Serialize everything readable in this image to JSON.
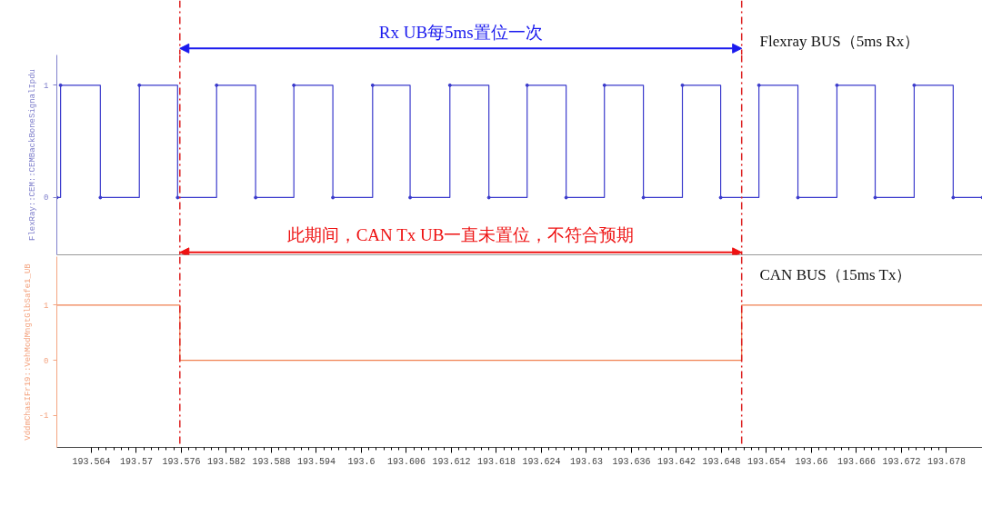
{
  "chart_data": [
    {
      "type": "step",
      "ylabel": "FlexRay::CEM::CEMBackBoneSignalIpdu",
      "xlim": [
        193.5594,
        193.6828
      ],
      "ylim": [
        -0.51,
        1.27
      ],
      "yticks": [
        0,
        1
      ],
      "tick_labels": "y",
      "grid": false,
      "legend": false,
      "marker": "circle",
      "series": [
        {
          "name": "Flexray BUS（5ms Rx）",
          "color": "#3a3acc",
          "x": [
            193.5594,
            193.5599,
            193.5652,
            193.5704,
            193.5755,
            193.5807,
            193.5859,
            193.591,
            193.5962,
            193.6015,
            193.6065,
            193.6118,
            193.617,
            193.6221,
            193.6273,
            193.6324,
            193.6376,
            193.6428,
            193.6479,
            193.653,
            193.6582,
            193.6634,
            193.6685,
            193.6737,
            193.6789,
            193.6828
          ],
          "values": [
            0,
            1,
            0,
            1,
            0,
            1,
            0,
            1,
            0,
            1,
            0,
            1,
            0,
            1,
            0,
            1,
            0,
            1,
            0,
            1,
            0,
            1,
            0,
            1,
            0,
            0
          ]
        }
      ],
      "ref_lines": [
        {
          "axis": "x",
          "value": 193.5758,
          "color": "#dd2222",
          "line_style": "dashed"
        },
        {
          "axis": "x",
          "value": 193.6507,
          "color": "#dd2222",
          "line_style": "dashed"
        }
      ],
      "annotations": [
        "Rx UB每5ms置位一次",
        "此期间，CAN Tx UB一直未置位，不符合预期"
      ]
    },
    {
      "type": "step",
      "ylabel": "VddmChasIFr19::VehModMngtGlbSafe1_UB",
      "xlim": [
        193.5594,
        193.6828
      ],
      "ylim": [
        -1.58,
        1.88
      ],
      "yticks": [
        -1,
        0,
        1
      ],
      "grid": false,
      "legend": false,
      "marker": "none",
      "xticks": [
        193.564,
        193.57,
        193.576,
        193.582,
        193.588,
        193.594,
        193.6,
        193.606,
        193.612,
        193.618,
        193.624,
        193.63,
        193.636,
        193.642,
        193.648,
        193.654,
        193.66,
        193.666,
        193.672,
        193.678
      ],
      "series": [
        {
          "name": "CAN BUS（15ms Tx）",
          "color": "#f08050",
          "x": [
            193.5594,
            193.5758,
            193.6507,
            193.6828
          ],
          "values": [
            1,
            0,
            1,
            1
          ]
        }
      ],
      "ref_lines": [
        {
          "axis": "x",
          "value": 193.5758,
          "color": "#dd2222",
          "line_style": "dashed"
        },
        {
          "axis": "x",
          "value": 193.6507,
          "color": "#dd2222",
          "line_style": "dashed"
        }
      ]
    }
  ]
}
